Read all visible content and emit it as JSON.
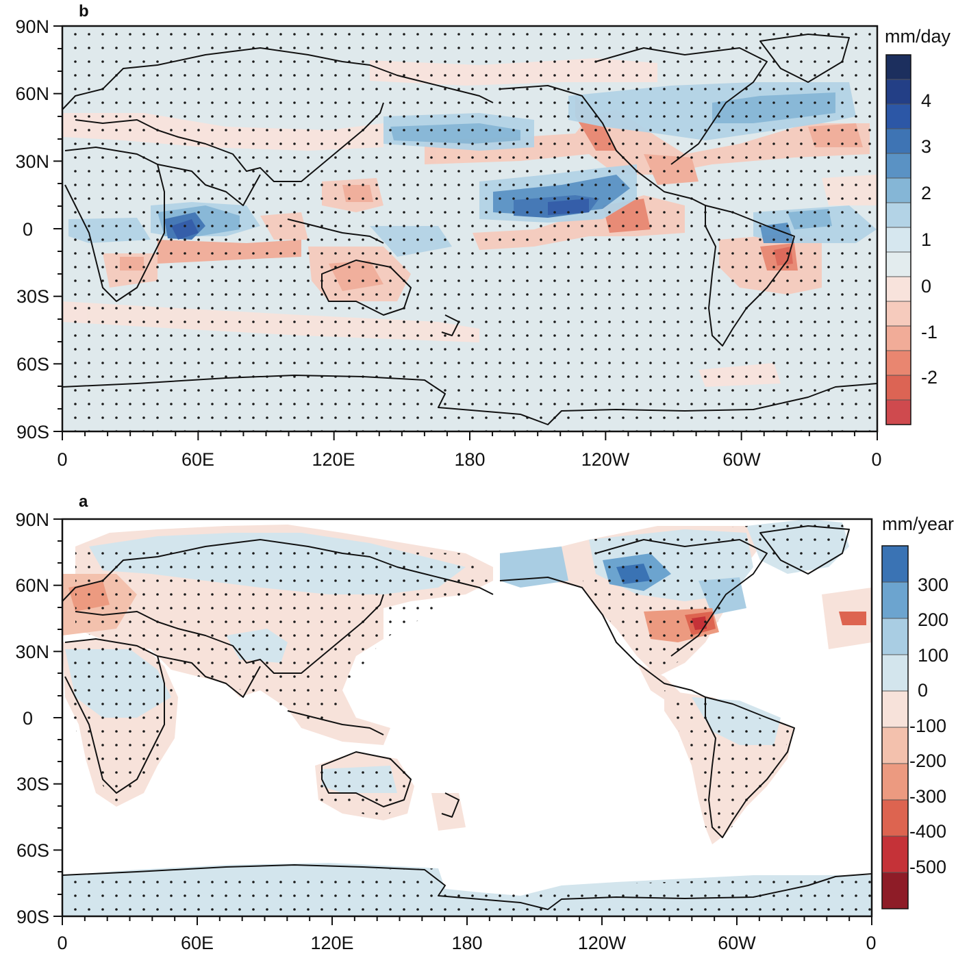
{
  "panels": [
    {
      "id": "b",
      "letter": "b",
      "unit": "mm/day",
      "lat_ticks": [
        "90N",
        "60N",
        "30N",
        "0",
        "30S",
        "60S",
        "90S"
      ],
      "lon_ticks": [
        "0",
        "60E",
        "120E",
        "180",
        "120W",
        "60W",
        "0"
      ],
      "colorbar": {
        "colors": [
          "#1c2f5e",
          "#233f86",
          "#2c57a6",
          "#3e74b4",
          "#5a92c4",
          "#85b6d6",
          "#b3d3e6",
          "#d6e7ef",
          "#e3ecee",
          "#f8e3dc",
          "#f6cbbd",
          "#f1ac98",
          "#e98670",
          "#dc6454",
          "#cf4a4e"
        ],
        "labels": [
          "4",
          "3",
          "2",
          "1",
          "0",
          "-1",
          "-2"
        ]
      },
      "background": "#dfe9ec",
      "stippling": "dense dots over most of the globe",
      "anomalies": [
        {
          "region": "central equatorial Pacific",
          "sign": "positive",
          "max_value": 4
        },
        {
          "region": "western equatorial Indian Ocean",
          "sign": "positive",
          "max_value": 4
        },
        {
          "region": "North Pacific 40N",
          "sign": "positive",
          "max_value": 2
        },
        {
          "region": "North Atlantic 50N",
          "sign": "positive",
          "max_value": 2
        },
        {
          "region": "tropical South Atlantic / NE Brazil coast",
          "sign": "mixed",
          "max_value": 3
        },
        {
          "region": "eastern tropical Pacific",
          "sign": "negative",
          "max_value": -2
        },
        {
          "region": "maritime continent / eastern Indian Ocean",
          "sign": "negative",
          "max_value": -2
        },
        {
          "region": "Australia",
          "sign": "negative",
          "max_value": -2
        },
        {
          "region": "NE Brazil",
          "sign": "negative",
          "max_value": -3
        },
        {
          "region": "eastern North Atlantic 40N",
          "sign": "negative",
          "max_value": -2
        }
      ]
    },
    {
      "id": "a",
      "letter": "a",
      "unit": "mm/year",
      "lat_ticks": [
        "90N",
        "60N",
        "30N",
        "0",
        "30S",
        "60S",
        "90S"
      ],
      "lon_ticks": [
        "0",
        "60E",
        "120E",
        "180",
        "120W",
        "60W",
        "0"
      ],
      "colorbar": {
        "colors": [
          "#3a73b4",
          "#6ca4cf",
          "#a9cde3",
          "#d3e5ed",
          "#f7e2da",
          "#f3c1ad",
          "#ec9a80",
          "#dd6450",
          "#c53238",
          "#8e1c27"
        ],
        "labels": [
          "300",
          "200",
          "100",
          "0",
          "-100",
          "-200",
          "-300",
          "-400",
          "-500"
        ]
      },
      "background": "#ffffff",
      "stippling": "dots over land areas",
      "anomalies": [
        {
          "region": "central Canada",
          "sign": "positive",
          "max_value": 300
        },
        {
          "region": "eastern United States",
          "sign": "negative",
          "max_value": -500
        },
        {
          "region": "Europe / western Russia",
          "sign": "negative",
          "max_value": -200
        },
        {
          "region": "northern Eurasia",
          "sign": "positive",
          "max_value": 100
        },
        {
          "region": "Africa / South America",
          "sign": "mixed",
          "max_value": -100
        },
        {
          "region": "Antarctica",
          "sign": "positive",
          "max_value": 100
        }
      ]
    }
  ]
}
